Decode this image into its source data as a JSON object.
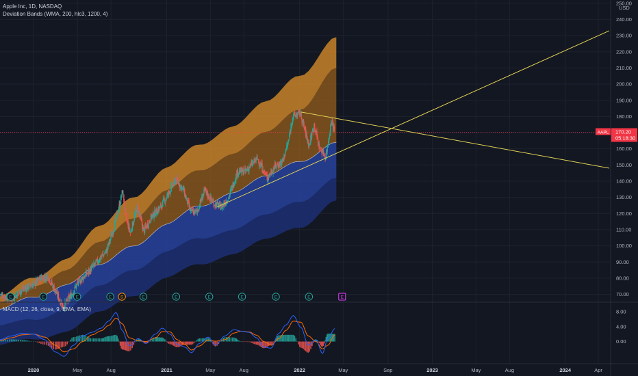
{
  "header": {
    "title": "Apple Inc, 1D, NASDAQ",
    "indicator": "Deviation Bands (WMA, 200, hlc3, 1200, 4)",
    "macd_title": "MACD (12, 26, close, 9, EMA, EMA)",
    "currency": "USD"
  },
  "price_tag": {
    "symbol": "AAPL",
    "price": "170.20",
    "countdown": "05:18:30",
    "value": 170.2
  },
  "colors": {
    "background": "#131722",
    "upper_band_outer": "#e8962a",
    "upper_band_inner": "#9a5f1c",
    "lower_band_inner": "#2845a6",
    "lower_band_outer": "#1c2f74",
    "trendline": "#e2d254",
    "price_line": "#f23645",
    "macd_line": "#2962ff",
    "signal_line": "#ff6d00",
    "hist_up": "#26a69a",
    "hist_down": "#ef5350"
  },
  "chart_data": [
    {
      "type": "line",
      "title": "Apple Inc, 1D, NASDAQ",
      "y_axis": {
        "ticks": [
          70,
          80,
          90,
          100,
          110,
          120,
          130,
          140,
          150,
          160,
          170,
          180,
          190,
          200,
          210,
          220,
          230,
          240,
          250
        ],
        "tick_labels": [
          "70.00",
          "80.00",
          "90.00",
          "100.00",
          "110.00",
          "120.00",
          "130.00",
          "140.00",
          "150.00",
          "160.00",
          "170.00",
          "180.00",
          "190.00",
          "200.00",
          "210.00",
          "220.00",
          "230.00",
          "240.00",
          "250.00"
        ],
        "ylim": [
          66,
          252
        ]
      },
      "x_axis": {
        "range": [
          "2019-10-01",
          "2024-05-01"
        ],
        "ticks": [
          {
            "date": "2020-01-01",
            "label": "2020",
            "year": true
          },
          {
            "date": "2020-05-01",
            "label": "May",
            "year": false
          },
          {
            "date": "2020-08-01",
            "label": "Aug",
            "year": false
          },
          {
            "date": "2021-01-01",
            "label": "2021",
            "year": true
          },
          {
            "date": "2021-05-01",
            "label": "May",
            "year": false
          },
          {
            "date": "2021-08-01",
            "label": "Aug",
            "year": false
          },
          {
            "date": "2022-01-01",
            "label": "2022",
            "year": true
          },
          {
            "date": "2022-05-01",
            "label": "May",
            "year": false
          },
          {
            "date": "2022-09-01",
            "label": "Sep",
            "year": false
          },
          {
            "date": "2023-01-01",
            "label": "2023",
            "year": true
          },
          {
            "date": "2023-05-01",
            "label": "May",
            "year": false
          },
          {
            "date": "2023-08-01",
            "label": "Aug",
            "year": false
          },
          {
            "date": "2024-01-01",
            "label": "2024",
            "year": true
          },
          {
            "date": "2024-04-01",
            "label": "Apr",
            "year": false
          }
        ]
      },
      "price": {
        "name": "AAPL",
        "x": [
          "2019-10-01",
          "2019-11-01",
          "2019-12-01",
          "2020-01-01",
          "2020-01-20",
          "2020-02-10",
          "2020-03-01",
          "2020-03-23",
          "2020-04-15",
          "2020-05-01",
          "2020-06-01",
          "2020-07-01",
          "2020-07-20",
          "2020-08-10",
          "2020-08-25",
          "2020-09-02",
          "2020-09-10",
          "2020-09-23",
          "2020-10-12",
          "2020-10-30",
          "2020-11-20",
          "2020-12-15",
          "2021-01-05",
          "2021-01-26",
          "2021-02-15",
          "2021-03-08",
          "2021-03-25",
          "2021-04-15",
          "2021-05-12",
          "2021-06-01",
          "2021-06-20",
          "2021-07-15",
          "2021-08-05",
          "2021-09-07",
          "2021-10-04",
          "2021-10-25",
          "2021-11-15",
          "2021-12-01",
          "2021-12-13",
          "2022-01-03",
          "2022-01-27",
          "2022-02-10",
          "2022-02-24",
          "2022-03-14",
          "2022-03-30",
          "2022-04-08"
        ],
        "values": [
          70,
          67,
          73,
          76,
          80,
          81,
          72,
          62,
          70,
          77,
          84,
          92,
          97,
          112,
          126,
          134,
          118,
          108,
          124,
          109,
          118,
          124,
          132,
          141,
          135,
          121,
          121,
          134,
          126,
          124,
          130,
          146,
          146,
          154,
          142,
          149,
          152,
          164,
          180,
          182,
          162,
          175,
          161,
          155,
          178,
          170
        ]
      },
      "deviation_bands": {
        "x": [
          "2019-10-01",
          "2020-01-01",
          "2020-04-01",
          "2020-07-01",
          "2020-10-01",
          "2021-01-01",
          "2021-04-01",
          "2021-07-01",
          "2021-10-01",
          "2022-01-01",
          "2022-04-12"
        ],
        "upper_outer": [
          68,
          80,
          93,
          111,
          131,
          148,
          162,
          175,
          188,
          206,
          229
        ],
        "upper_inner": [
          64,
          75,
          86,
          101,
          118,
          134,
          146,
          158,
          169,
          185,
          210
        ],
        "middle": [
          60,
          68,
          77,
          87,
          101,
          113,
          124,
          134,
          142,
          153,
          164
        ],
        "lower_inner": [
          50,
          54,
          62,
          74,
          86,
          96,
          104,
          111,
          118,
          128,
          142
        ],
        "lower_outer": [
          38,
          42,
          48,
          58,
          70,
          80,
          88,
          96,
          103,
          112,
          128
        ]
      },
      "trendlines": [
        {
          "name": "upper",
          "x": [
            "2022-01-04",
            "2024-05-01"
          ],
          "y": [
            182.8,
            148.0
          ]
        },
        {
          "name": "lower",
          "x": [
            "2021-05-19",
            "2024-05-01"
          ],
          "y": [
            124.0,
            233.0
          ]
        }
      ],
      "events": [
        {
          "date": "2019-10-30",
          "label": "E",
          "kind": "earnings"
        },
        {
          "date": "2020-01-28",
          "label": "E",
          "kind": "earnings"
        },
        {
          "date": "2020-04-30",
          "label": "E",
          "kind": "earnings"
        },
        {
          "date": "2020-07-30",
          "label": "E",
          "kind": "earnings"
        },
        {
          "date": "2020-08-31",
          "label": "S",
          "kind": "split"
        },
        {
          "date": "2020-10-29",
          "label": "E",
          "kind": "earnings"
        },
        {
          "date": "2021-01-27",
          "label": "E",
          "kind": "earnings"
        },
        {
          "date": "2021-04-28",
          "label": "E",
          "kind": "earnings"
        },
        {
          "date": "2021-07-27",
          "label": "E",
          "kind": "earnings"
        },
        {
          "date": "2021-10-28",
          "label": "E",
          "kind": "earnings"
        },
        {
          "date": "2022-01-27",
          "label": "E",
          "kind": "earnings"
        },
        {
          "date": "2022-04-28",
          "label": "E",
          "kind": "upcoming"
        }
      ]
    },
    {
      "type": "line",
      "title": "MACD (12, 26, close, 9, EMA, EMA)",
      "y_axis": {
        "ticks": [
          0,
          4,
          8
        ],
        "tick_labels": [
          "0.00",
          "4.00",
          "8.00"
        ],
        "ylim": [
          -4.5,
          9.5
        ]
      },
      "x": [
        "2019-10-01",
        "2019-11-01",
        "2019-12-01",
        "2020-01-01",
        "2020-02-01",
        "2020-03-01",
        "2020-03-25",
        "2020-04-20",
        "2020-05-15",
        "2020-06-10",
        "2020-07-05",
        "2020-07-25",
        "2020-08-15",
        "2020-09-01",
        "2020-09-20",
        "2020-10-15",
        "2020-11-05",
        "2020-12-01",
        "2020-12-20",
        "2021-01-10",
        "2021-01-30",
        "2021-02-20",
        "2021-03-10",
        "2021-04-01",
        "2021-04-25",
        "2021-05-15",
        "2021-06-10",
        "2021-07-05",
        "2021-07-25",
        "2021-08-15",
        "2021-09-05",
        "2021-09-25",
        "2021-10-15",
        "2021-11-05",
        "2021-11-25",
        "2021-12-15",
        "2022-01-05",
        "2022-01-25",
        "2022-02-15",
        "2022-03-05",
        "2022-03-20",
        "2022-04-08"
      ],
      "series": [
        {
          "name": "MACD",
          "values": [
            0.5,
            1.5,
            2.2,
            2.0,
            0.5,
            -2.8,
            -4.0,
            -1.0,
            1.5,
            2.5,
            3.6,
            5.5,
            7.8,
            3.0,
            -1.2,
            0.8,
            -0.5,
            2.0,
            3.6,
            2.0,
            -0.8,
            -1.5,
            -3.0,
            -0.5,
            1.2,
            -1.0,
            1.5,
            3.2,
            2.8,
            2.5,
            1.0,
            -1.5,
            -1.8,
            2.2,
            4.5,
            7.0,
            3.8,
            -1.0,
            0.5,
            -3.2,
            0.8,
            3.5
          ]
        },
        {
          "name": "Signal",
          "values": [
            0.3,
            1.0,
            1.8,
            2.0,
            1.2,
            -1.0,
            -2.8,
            -2.0,
            0.0,
            1.8,
            2.9,
            4.3,
            6.3,
            4.8,
            1.0,
            0.2,
            0.0,
            1.0,
            2.7,
            2.6,
            0.5,
            -0.8,
            -2.3,
            -1.2,
            0.4,
            0.1,
            0.5,
            2.3,
            2.8,
            2.6,
            1.7,
            0.0,
            -1.0,
            0.8,
            3.0,
            5.5,
            5.2,
            1.5,
            0.0,
            -2.0,
            -1.0,
            1.8
          ]
        }
      ]
    }
  ]
}
